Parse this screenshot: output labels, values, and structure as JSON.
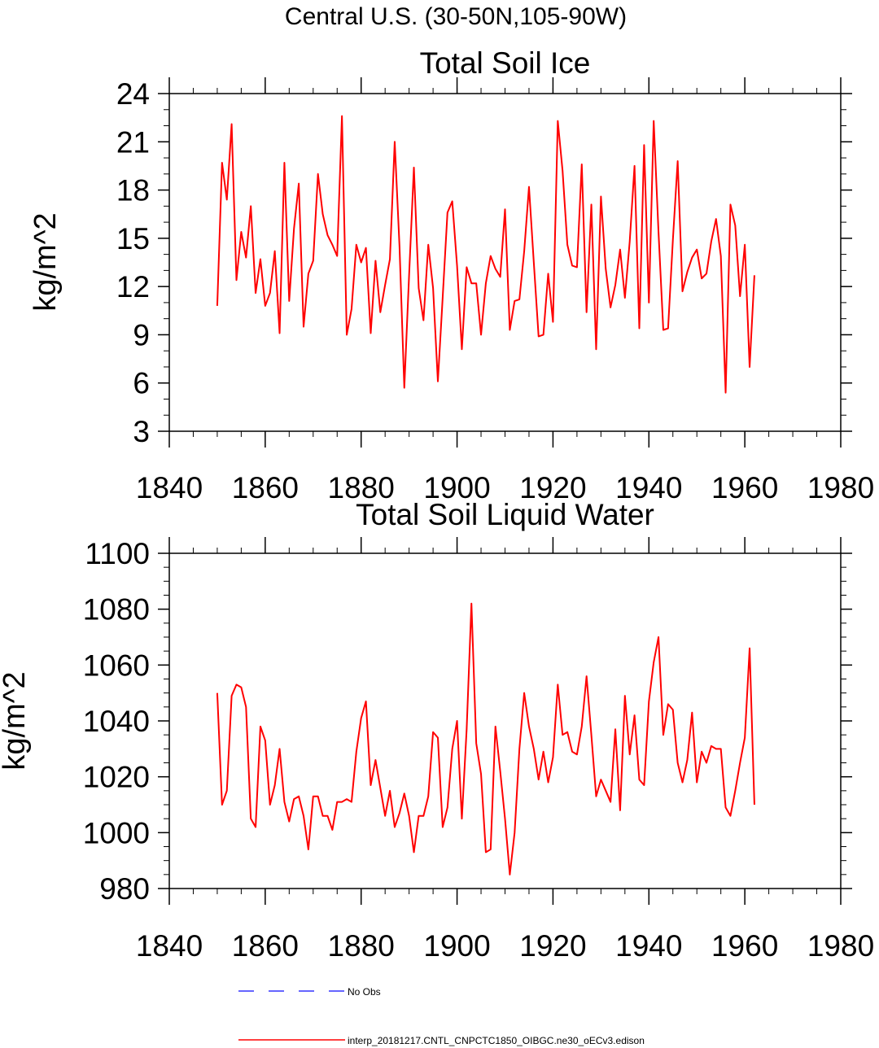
{
  "figure_title": "Central U.S. (30-50N,105-90W)",
  "legend": [
    {
      "label": "No Obs",
      "color": "#3333ff",
      "style": "dashed"
    },
    {
      "label": "interp_20181217.CNTL_CNPCTC1850_OIBGC.ne30_oECv3.edison",
      "color": "#ff0000",
      "style": "solid"
    }
  ],
  "chart_data": [
    {
      "type": "line",
      "title": "Total Soil Ice",
      "xlabel": "",
      "ylabel": "kg/m^2",
      "xlim": [
        1840,
        1980
      ],
      "ylim": [
        3,
        24
      ],
      "xticks": [
        1840,
        1860,
        1880,
        1900,
        1920,
        1940,
        1960,
        1980
      ],
      "yticks": [
        3,
        6,
        9,
        12,
        15,
        18,
        21,
        24
      ],
      "y_minor_step": 1,
      "x_minor_step": 5,
      "grid": false,
      "series": [
        {
          "name": "interp_20181217.CNTL_CNPCTC1850_OIBGC.ne30_oECv3.edison",
          "color": "#ff0000",
          "x_start": 1850,
          "x_step": 1,
          "values": [
            10.8,
            19.7,
            17.4,
            22.1,
            12.4,
            15.4,
            13.8,
            17.0,
            11.6,
            13.7,
            10.8,
            11.6,
            14.2,
            9.1,
            19.7,
            11.1,
            15.6,
            18.4,
            9.5,
            12.8,
            13.6,
            19.0,
            16.5,
            15.2,
            14.6,
            13.9,
            22.6,
            9.0,
            10.6,
            14.6,
            13.5,
            14.4,
            9.1,
            13.6,
            10.4,
            12.1,
            13.7,
            21.0,
            14.5,
            5.7,
            12.7,
            19.4,
            11.9,
            9.9,
            14.6,
            11.9,
            6.1,
            11.3,
            16.6,
            17.3,
            13.3,
            8.1,
            13.2,
            12.2,
            12.2,
            9.0,
            12.2,
            13.9,
            13.1,
            12.6,
            16.8,
            9.3,
            11.1,
            11.2,
            14.2,
            18.2,
            13.5,
            8.9,
            9.0,
            12.8,
            9.8,
            22.3,
            19.2,
            14.6,
            13.3,
            13.2,
            19.6,
            10.4,
            17.1,
            8.1,
            17.6,
            13.1,
            10.7,
            12.1,
            14.3,
            11.3,
            14.8,
            19.5,
            9.4,
            20.8,
            11.0,
            22.3,
            15.4,
            9.3,
            9.4,
            14.9,
            19.8,
            11.7,
            12.9,
            13.8,
            14.3,
            12.5,
            12.8,
            14.8,
            16.2,
            13.9,
            5.4,
            17.1,
            15.8,
            11.4,
            14.6,
            7.0,
            12.7
          ]
        }
      ]
    },
    {
      "type": "line",
      "title": "Total Soil Liquid Water",
      "xlabel": "",
      "ylabel": "kg/m^2",
      "xlim": [
        1840,
        1980
      ],
      "ylim": [
        980,
        1100
      ],
      "xticks": [
        1840,
        1860,
        1880,
        1900,
        1920,
        1940,
        1960,
        1980
      ],
      "yticks": [
        980,
        1000,
        1020,
        1040,
        1060,
        1080,
        1100
      ],
      "y_minor_step": 5,
      "x_minor_step": 5,
      "grid": false,
      "series": [
        {
          "name": "interp_20181217.CNTL_CNPCTC1850_OIBGC.ne30_oECv3.edison",
          "color": "#ff0000",
          "x_start": 1850,
          "x_step": 1,
          "values": [
            1050,
            1010,
            1015,
            1049,
            1053,
            1052,
            1045,
            1005,
            1002,
            1038,
            1033,
            1010,
            1017,
            1030,
            1011,
            1004,
            1012,
            1013,
            1006,
            994,
            1013,
            1013,
            1006,
            1006,
            1001,
            1011,
            1011,
            1012,
            1011,
            1029,
            1041,
            1047,
            1017,
            1026,
            1016,
            1006,
            1015,
            1002,
            1007,
            1014,
            1006,
            993,
            1006,
            1006,
            1013,
            1036,
            1034,
            1002,
            1009,
            1030,
            1040,
            1005,
            1037,
            1082,
            1032,
            1021,
            993,
            994,
            1038,
            1022,
            1005,
            985,
            1000,
            1030,
            1050,
            1038,
            1030,
            1019,
            1029,
            1018,
            1027,
            1053,
            1035,
            1036,
            1029,
            1028,
            1038,
            1056,
            1035,
            1013,
            1019,
            1015,
            1011,
            1037,
            1008,
            1049,
            1028,
            1042,
            1019,
            1017,
            1047,
            1061,
            1070,
            1035,
            1046,
            1044,
            1025,
            1018,
            1026,
            1043,
            1018,
            1029,
            1025,
            1031,
            1030,
            1030,
            1009,
            1006,
            1015,
            1025,
            1034,
            1066,
            1010
          ]
        }
      ]
    }
  ]
}
